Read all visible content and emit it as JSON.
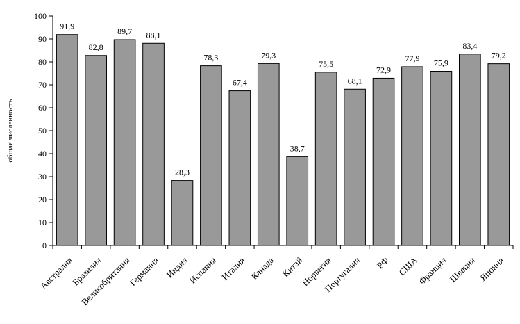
{
  "chart_data": {
    "type": "bar",
    "ylabel": "общая численность",
    "ylim": [
      0,
      100
    ],
    "yticks": [
      "0",
      "10",
      "20",
      "30",
      "40",
      "50",
      "60",
      "70",
      "80",
      "90",
      "100"
    ],
    "categories": [
      "Австралия",
      "Бразилия",
      "Великобритания",
      "Германия",
      "Индия",
      "Испания",
      "Италия",
      "Канада",
      "Китай",
      "Норвегия",
      "Португалия",
      "РФ",
      "США",
      "Франция",
      "Швеция",
      "Япония"
    ],
    "values": [
      91.9,
      82.8,
      89.7,
      88.1,
      28.3,
      78.3,
      67.4,
      79.3,
      38.7,
      75.5,
      68.1,
      72.9,
      77.9,
      75.9,
      83.4,
      79.2
    ],
    "value_labels": [
      "91,9",
      "82,8",
      "89,7",
      "88,1",
      "28,3",
      "78,3",
      "67,4",
      "79,3",
      "38,7",
      "75,5",
      "68,1",
      "72,9",
      "77,9",
      "75,9",
      "83,4",
      "79,2"
    ],
    "bar_color": "#999999",
    "grid": false,
    "legend": "none"
  }
}
